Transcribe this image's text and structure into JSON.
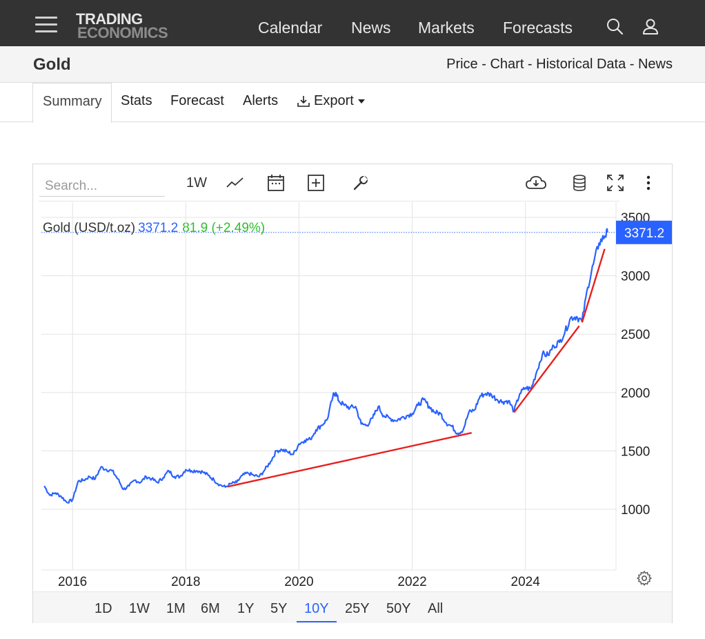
{
  "nav": {
    "logo_line1": "TRADING",
    "logo_line2": "ECONOMICS",
    "links": [
      "Calendar",
      "News",
      "Markets",
      "Forecasts"
    ],
    "icons": [
      "menu-icon",
      "search-icon",
      "user-icon"
    ]
  },
  "subheader": {
    "title": "Gold",
    "links": [
      "Price",
      "Chart",
      "Historical Data",
      "News"
    ],
    "separator": " - "
  },
  "tabs": {
    "active": "Summary",
    "items": [
      "Stats",
      "Forecast",
      "Alerts"
    ],
    "export_label": "Export"
  },
  "toolbar": {
    "search_placeholder": "Search...",
    "interval": "1W",
    "icons": [
      "line-chart-icon",
      "calendar-icon",
      "add-indicator-icon",
      "wrench-icon",
      "download-icon",
      "database-icon",
      "fullscreen-icon",
      "more-icon"
    ]
  },
  "legend": {
    "name": "Gold (USD/t.oz)",
    "price": "3371.2",
    "change": "81.9 (+2.49%)"
  },
  "ranges": {
    "items": [
      "1D",
      "1W",
      "1M",
      "6M",
      "1Y",
      "5Y",
      "10Y",
      "25Y",
      "50Y",
      "All"
    ],
    "active": "10Y"
  },
  "colors": {
    "line": "#2962ff",
    "trend": "#e81e1e",
    "positive": "#2cbf2c",
    "topbar": "#333333"
  },
  "chart_data": {
    "type": "line",
    "title": "Gold (USD/t.oz)",
    "last_value": 3371.2,
    "last_label": "3371.2",
    "xlim": [
      2015.45,
      2025.6
    ],
    "ylim": [
      480,
      3630
    ],
    "y_ticks": [
      1000,
      1500,
      2000,
      2500,
      3000,
      3500
    ],
    "y_tick_labels": [
      "1000",
      "1500",
      "2000",
      "2500",
      "3000",
      "3500"
    ],
    "x_ticks": [
      2016,
      2018,
      2020,
      2022,
      2024
    ],
    "x_tick_labels": [
      "2016",
      "2018",
      "2020",
      "2022",
      "2024"
    ],
    "grid": true,
    "series": [
      {
        "x": [
          2015.5,
          2015.6,
          2015.7,
          2015.8,
          2015.9,
          2016.0,
          2016.1,
          2016.2,
          2016.3,
          2016.4,
          2016.5,
          2016.6,
          2016.7,
          2016.8,
          2016.9,
          2017.0,
          2017.1,
          2017.2,
          2017.3,
          2017.4,
          2017.5,
          2017.6,
          2017.7,
          2017.8,
          2017.9,
          2018.0,
          2018.1,
          2018.2,
          2018.3,
          2018.4,
          2018.5,
          2018.6,
          2018.7,
          2018.8,
          2018.9,
          2019.0,
          2019.1,
          2019.2,
          2019.3,
          2019.4,
          2019.5,
          2019.6,
          2019.7,
          2019.8,
          2019.9,
          2020.0,
          2020.1,
          2020.2,
          2020.3,
          2020.4,
          2020.5,
          2020.6,
          2020.65,
          2020.7,
          2020.8,
          2020.9,
          2021.0,
          2021.1,
          2021.2,
          2021.3,
          2021.4,
          2021.5,
          2021.6,
          2021.7,
          2021.8,
          2021.9,
          2022.0,
          2022.1,
          2022.2,
          2022.3,
          2022.4,
          2022.5,
          2022.6,
          2022.7,
          2022.8,
          2022.9,
          2023.0,
          2023.1,
          2023.2,
          2023.3,
          2023.4,
          2023.5,
          2023.6,
          2023.7,
          2023.8,
          2023.9,
          2024.0,
          2024.1,
          2024.2,
          2024.3,
          2024.4,
          2024.5,
          2024.6,
          2024.7,
          2024.8,
          2024.9,
          2025.0,
          2025.1,
          2025.2,
          2025.3,
          2025.4,
          2025.45
        ],
        "y": [
          1200,
          1120,
          1140,
          1110,
          1060,
          1080,
          1240,
          1250,
          1280,
          1260,
          1360,
          1340,
          1330,
          1260,
          1170,
          1200,
          1250,
          1230,
          1280,
          1260,
          1230,
          1270,
          1330,
          1280,
          1280,
          1340,
          1330,
          1330,
          1320,
          1290,
          1250,
          1210,
          1190,
          1220,
          1230,
          1290,
          1310,
          1290,
          1280,
          1340,
          1410,
          1500,
          1510,
          1490,
          1470,
          1560,
          1590,
          1600,
          1680,
          1720,
          1770,
          1970,
          2000,
          1930,
          1890,
          1870,
          1880,
          1730,
          1720,
          1780,
          1880,
          1800,
          1780,
          1760,
          1780,
          1800,
          1820,
          1890,
          1940,
          1880,
          1830,
          1820,
          1740,
          1710,
          1650,
          1680,
          1830,
          1850,
          1970,
          1990,
          1980,
          1940,
          1920,
          1930,
          1840,
          1990,
          2040,
          2030,
          2180,
          2330,
          2320,
          2400,
          2430,
          2520,
          2640,
          2650,
          2610,
          2900,
          3100,
          3280,
          3340,
          3371.2
        ]
      }
    ],
    "trendlines": [
      {
        "x": [
          2018.75,
          2023.05
        ],
        "y": [
          1195,
          1655
        ]
      },
      {
        "x": [
          2023.8,
          2024.95
        ],
        "y": [
          1830,
          2570
        ]
      },
      {
        "x": [
          2025.0,
          2025.4
        ],
        "y": [
          2600,
          3230
        ]
      }
    ]
  }
}
